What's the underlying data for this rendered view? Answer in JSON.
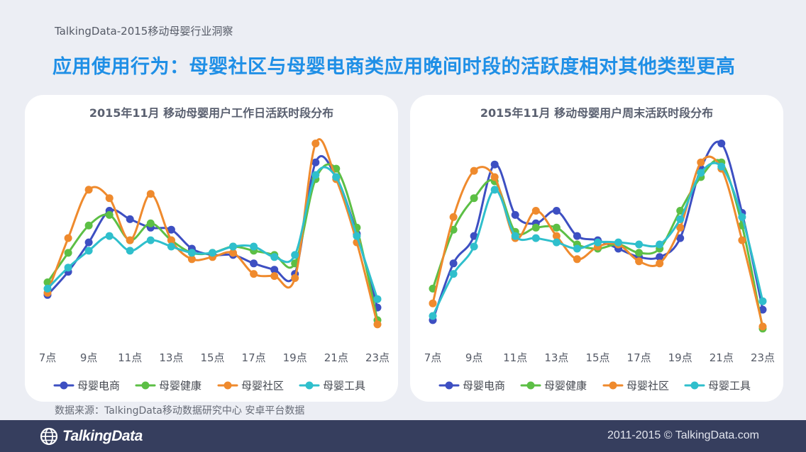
{
  "header": {
    "report_label": "TalkingData-2015移动母婴行业洞察",
    "headline": "应用使用行为：母婴社区与母婴电商类应用晚间时段的活跃度相对其他类型更高"
  },
  "footer": {
    "source": "数据来源：TalkingData移动数据研究中心 安卓平台数据",
    "brand": "TalkingData",
    "copyright": "2011-2015 © TalkingData.com"
  },
  "colors": {
    "母婴电商": "#3d4fc2",
    "母婴健康": "#5cbf45",
    "母婴社区": "#ef8a2d",
    "母婴工具": "#2fbfcc"
  },
  "chart_data": [
    {
      "type": "line",
      "title": "2015年11月 移动母婴用户工作日活跃时段分布",
      "x": [
        "7点",
        "8点",
        "9点",
        "10点",
        "11点",
        "12点",
        "13点",
        "14点",
        "15点",
        "16点",
        "17点",
        "18点",
        "19点",
        "20点",
        "21点",
        "22点",
        "23点"
      ],
      "tick_labels": [
        "7点",
        "9点",
        "11点",
        "13点",
        "15点",
        "17点",
        "19点",
        "21点",
        "23点"
      ],
      "grid": false,
      "legend": "bottom",
      "series": [
        {
          "name": "母婴电商",
          "values": [
            10,
            21,
            35,
            50,
            46,
            42,
            41,
            32,
            29,
            29,
            25,
            22,
            20,
            73,
            66,
            39,
            4
          ]
        },
        {
          "name": "母婴健康",
          "values": [
            16,
            30,
            43,
            48,
            36,
            44,
            36,
            30,
            30,
            33,
            31,
            29,
            25,
            65,
            70,
            42,
            -2
          ]
        },
        {
          "name": "母婴社区",
          "values": [
            11,
            37,
            60,
            56,
            36,
            58,
            36,
            27,
            28,
            30,
            20,
            19,
            18,
            82,
            65,
            35,
            -4
          ]
        },
        {
          "name": "母婴工具",
          "values": [
            13,
            23,
            31,
            38,
            31,
            36,
            33,
            30,
            30,
            33,
            33,
            28,
            29,
            67,
            66,
            38,
            8
          ]
        }
      ]
    },
    {
      "type": "line",
      "title": "2015年11月 移动母婴用户周末活跃时段分布",
      "x": [
        "7点",
        "8点",
        "9点",
        "10点",
        "11点",
        "12点",
        "13点",
        "14点",
        "15点",
        "16点",
        "17点",
        "18点",
        "19点",
        "20点",
        "21点",
        "22点",
        "23点"
      ],
      "tick_labels": [
        "7点",
        "9点",
        "11点",
        "13点",
        "15点",
        "17点",
        "19点",
        "21点",
        "23点"
      ],
      "grid": false,
      "legend": "bottom",
      "series": [
        {
          "name": "母婴电商",
          "values": [
            -2,
            25,
            38,
            72,
            48,
            44,
            50,
            38,
            36,
            32,
            28,
            28,
            37,
            70,
            82,
            49,
            3
          ]
        },
        {
          "name": "母婴健康",
          "values": [
            13,
            41,
            56,
            64,
            40,
            42,
            42,
            34,
            32,
            34,
            30,
            32,
            50,
            66,
            73,
            43,
            -6
          ]
        },
        {
          "name": "母婴社区",
          "values": [
            6,
            47,
            69,
            66,
            37,
            50,
            38,
            27,
            33,
            34,
            26,
            25,
            42,
            73,
            70,
            36,
            -5
          ]
        },
        {
          "name": "母婴工具",
          "values": [
            0,
            20,
            33,
            60,
            38,
            37,
            35,
            32,
            35,
            35,
            34,
            34,
            46,
            68,
            71,
            47,
            7
          ]
        }
      ]
    }
  ]
}
